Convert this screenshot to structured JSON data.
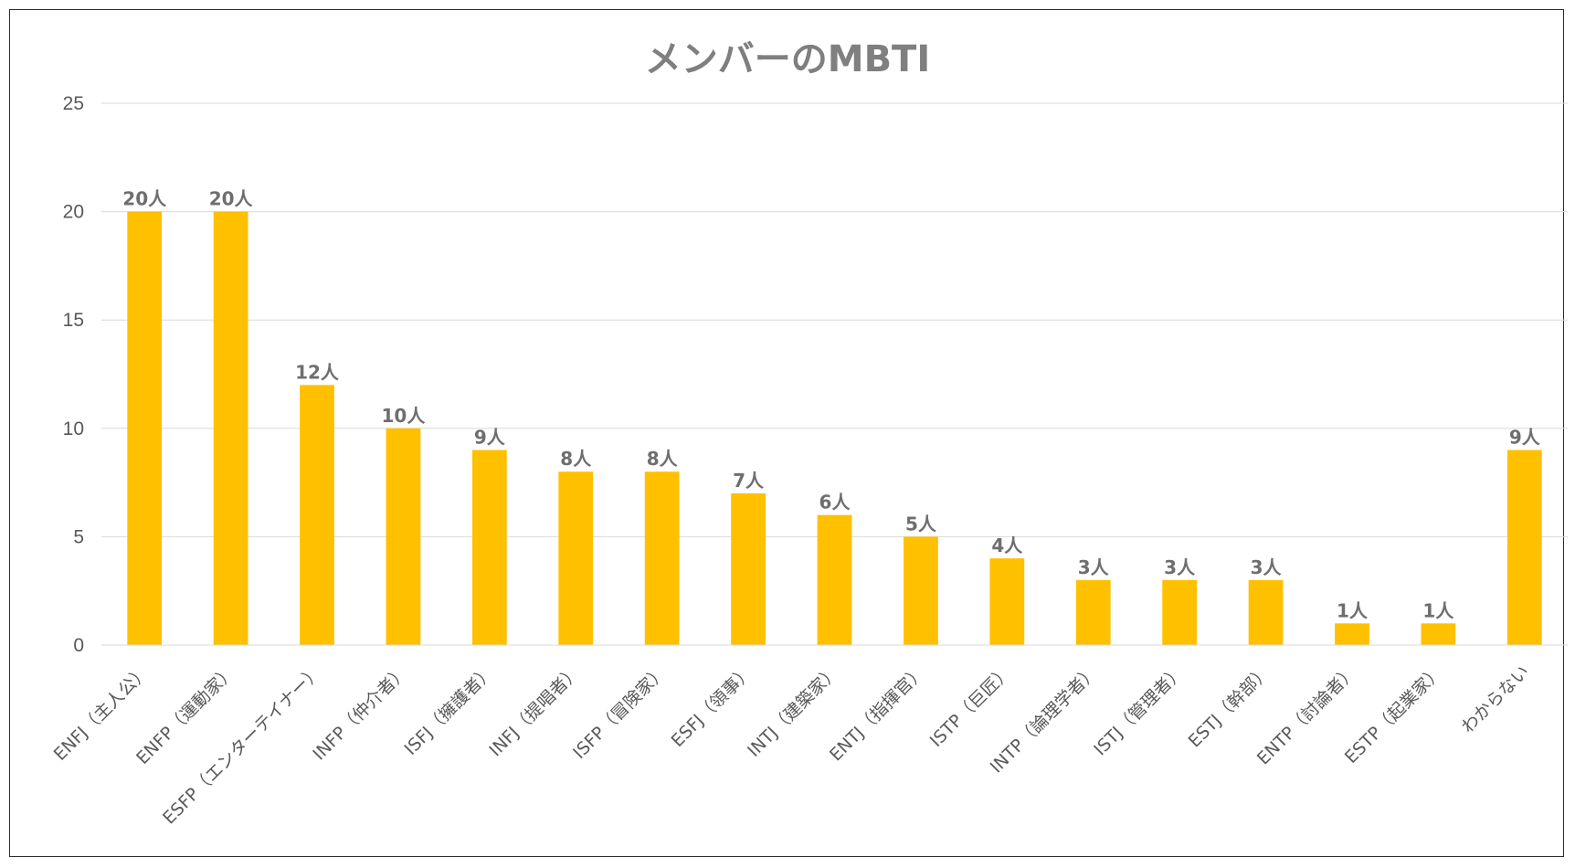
{
  "chart_data": {
    "type": "bar",
    "title": "メンバーのMBTI",
    "xlabel": "",
    "ylabel": "",
    "ylim": [
      0,
      25
    ],
    "yticks": [
      0,
      5,
      10,
      15,
      20,
      25
    ],
    "grid": true,
    "legend": "none",
    "bar_color": "#FFC000",
    "categories": [
      "ENFJ（主人公）",
      "ENFP（運動家）",
      "ESFP（エンターテイナー）",
      "INFP（仲介者）",
      "ISFJ（擁護者）",
      "INFJ（提唱者）",
      "ISFP（冒険家）",
      "ESFJ（領事）",
      "INTJ（建築家）",
      "ENTJ（指揮官）",
      "ISTP（巨匠）",
      "INTP（論理学者）",
      "ISTJ（管理者）",
      "ESTJ（幹部）",
      "ENTP（討論者）",
      "ESTP（起業家）",
      "わからない"
    ],
    "values": [
      20,
      20,
      12,
      10,
      9,
      8,
      8,
      7,
      6,
      5,
      4,
      3,
      3,
      3,
      1,
      1,
      9
    ],
    "data_labels": [
      "20人",
      "20人",
      "12人",
      "10人",
      "9人",
      "8人",
      "8人",
      "7人",
      "6人",
      "5人",
      "4人",
      "3人",
      "3人",
      "3人",
      "1人",
      "1人",
      "9人"
    ]
  }
}
